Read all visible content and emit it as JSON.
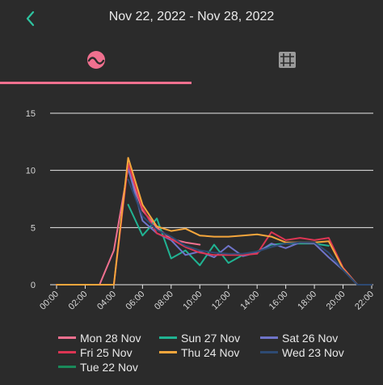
{
  "header": {
    "title": "Nov 22, 2022 - Nov 28, 2022",
    "back_icon": "chevron-left-icon",
    "accent": "#2ec4a0"
  },
  "tabs": [
    {
      "name": "chart",
      "icon": "wave-chart-icon",
      "active": true
    },
    {
      "name": "table",
      "icon": "grid-table-icon",
      "active": false
    }
  ],
  "chart_data": {
    "type": "line",
    "grid": true,
    "ylim": [
      0,
      15
    ],
    "y_ticks": [
      "0",
      "5",
      "10",
      "15"
    ],
    "x_ticks": [
      "00:00",
      "02:00",
      "04:00",
      "06:00",
      "08:00",
      "10:00",
      "12:00",
      "14:00",
      "16:00",
      "18:00",
      "20:00",
      "22:00"
    ],
    "x_tick_values": [
      0,
      2,
      4,
      6,
      8,
      10,
      12,
      14,
      16,
      18,
      20,
      22
    ],
    "xlim": [
      0,
      22
    ],
    "series": [
      {
        "name": "Mon 28 Nov",
        "color": "#f0708f",
        "x": [
          0,
          1,
          2,
          3,
          4,
          5,
          6,
          7,
          8,
          9,
          10
        ],
        "y": [
          0,
          0,
          0,
          0,
          3.0,
          10.2,
          6.5,
          5.0,
          4.0,
          3.7,
          3.5
        ]
      },
      {
        "name": "Sun 27 Nov",
        "color": "#20b392",
        "x": [
          5,
          6,
          6.5,
          7,
          8,
          9,
          10,
          11,
          12,
          13,
          14,
          15,
          16,
          17,
          18,
          19
        ],
        "y": [
          7.0,
          4.3,
          5.0,
          5.8,
          2.3,
          3.0,
          1.7,
          3.5,
          1.9,
          2.6,
          2.9,
          3.5,
          3.6,
          3.6,
          3.6,
          3.4
        ]
      },
      {
        "name": "Sat 26 Nov",
        "color": "#6f74c9",
        "x": [
          5,
          6,
          7,
          8,
          9,
          10,
          11,
          12,
          13,
          14,
          15,
          16,
          17,
          18,
          19,
          20,
          21
        ],
        "y": [
          10.2,
          5.6,
          4.5,
          3.9,
          2.6,
          2.9,
          2.4,
          3.4,
          2.5,
          2.8,
          3.6,
          3.2,
          3.7,
          3.6,
          2.4,
          1.3,
          0
        ]
      },
      {
        "name": "Fri 25 Nov",
        "color": "#dd3553",
        "x": [
          0,
          1,
          2,
          3,
          4,
          5,
          6,
          7,
          8,
          9,
          10,
          11,
          12,
          13,
          14,
          15,
          16,
          17,
          18,
          19,
          20,
          21,
          22
        ],
        "y": [
          0,
          0,
          0,
          0,
          0,
          10.6,
          6.7,
          4.5,
          4.0,
          3.3,
          2.8,
          2.6,
          2.6,
          2.6,
          2.7,
          4.6,
          3.9,
          4.1,
          3.9,
          4.1,
          1.5,
          0,
          0
        ]
      },
      {
        "name": "Thu 24 Nov",
        "color": "#f5a63c",
        "x": [
          0,
          1,
          2,
          3,
          4,
          5,
          6,
          7,
          8,
          9,
          10,
          11,
          12,
          13,
          14,
          15,
          16,
          17,
          18,
          19,
          20,
          21,
          22
        ],
        "y": [
          0,
          0,
          0,
          0,
          0,
          11.1,
          7.0,
          5.1,
          4.7,
          4.9,
          4.3,
          4.2,
          4.2,
          4.3,
          4.4,
          4.2,
          3.7,
          3.7,
          3.7,
          3.8,
          1.4,
          0,
          0
        ]
      },
      {
        "name": "Wed 23 Nov",
        "color": "#2e4a73",
        "x": [
          5,
          6,
          7,
          8,
          9,
          10,
          11,
          12,
          13,
          14,
          15,
          16,
          17,
          18,
          19,
          20,
          21,
          22
        ],
        "y": [
          9.2,
          6.0,
          4.8,
          4.2,
          3.4,
          3.0,
          2.8,
          2.7,
          2.7,
          2.9,
          3.3,
          3.6,
          3.7,
          3.7,
          2.8,
          1.3,
          0,
          0
        ]
      },
      {
        "name": "Tue 22 Nov",
        "color": "#1a8a5a",
        "x": [],
        "y": []
      }
    ]
  }
}
